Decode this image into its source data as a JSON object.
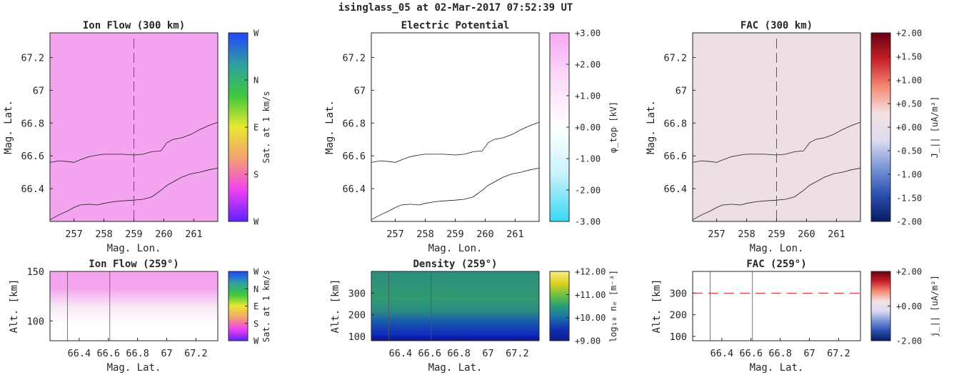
{
  "suptitle": "isinglass_05 at 02-Mar-2017 07:52:39 UT",
  "colors": {
    "ion_flow_fill": "#f5a5f0",
    "fac_fill": "#ede0e4",
    "cut_line": "#e02020",
    "contour": "#1a1a1a"
  },
  "chart_data": [
    {
      "id": "ion-flow-300",
      "type": "heatmap",
      "title": "Ion Flow (300 km)",
      "xlabel": "Mag. Lon.",
      "ylabel": "Mag. Lat.",
      "xlim": [
        256.2,
        261.8
      ],
      "ylim": [
        66.2,
        67.35
      ],
      "xticks": [
        "257",
        "258",
        "259",
        "260",
        "261"
      ],
      "yticks": [
        "66.4",
        "66.6",
        "66.8",
        "67",
        "67.2"
      ],
      "cut_lon": 259,
      "colorbar": {
        "label": "Sat. at 1 km/s",
        "ticks": [
          "W",
          "N",
          "E",
          "S",
          "W"
        ],
        "colors": [
          "#2244ff",
          "#2fa0a0",
          "#3dc83d",
          "#e8e830",
          "#f5a070",
          "#f040f0",
          "#6020ff"
        ]
      }
    },
    {
      "id": "electric-potential",
      "type": "heatmap",
      "title": "Electric Potential",
      "xlabel": "Mag. Lon.",
      "ylabel": "Mag. Lat.",
      "xlim": [
        256.2,
        261.8
      ],
      "ylim": [
        66.2,
        67.35
      ],
      "xticks": [
        "257",
        "258",
        "259",
        "260",
        "261"
      ],
      "yticks": [
        "66.4",
        "66.6",
        "66.8",
        "67",
        "67.2"
      ],
      "colorbar": {
        "label": "φ_top [kV]",
        "ticks": [
          "+3.00",
          "+2.00",
          "+1.00",
          "+0.00",
          "-1.00",
          "-2.00",
          "-3.00"
        ],
        "colors": [
          "#f8a8f4",
          "#fcdcfa",
          "#ffffff",
          "#c8f2fc",
          "#38d8f4"
        ]
      }
    },
    {
      "id": "fac-300",
      "type": "heatmap",
      "title": "FAC (300 km)",
      "xlabel": "Mag. Lon.",
      "ylabel": "Mag. Lat.",
      "xlim": [
        256.2,
        261.8
      ],
      "ylim": [
        66.2,
        67.35
      ],
      "xticks": [
        "257",
        "258",
        "259",
        "260",
        "261"
      ],
      "yticks": [
        "66.4",
        "66.6",
        "66.8",
        "67",
        "67.2"
      ],
      "cut_lon": 259,
      "colorbar": {
        "label": "J_|| [uA/m²]",
        "ticks": [
          "+2.00",
          "+1.50",
          "+1.00",
          "+0.50",
          "+0.00",
          "-0.50",
          "-1.00",
          "-1.50",
          "-2.00"
        ],
        "colors": [
          "#6a0010",
          "#c8202a",
          "#f48a72",
          "#f4e2e4",
          "#dcdcf0",
          "#7a96d6",
          "#2a50b0",
          "#0a1a60"
        ]
      }
    },
    {
      "id": "ion-flow-259",
      "type": "heatmap",
      "title": "Ion Flow (259°)",
      "xlabel": "Mag. Lat.",
      "ylabel": "Alt. [km]",
      "xlim": [
        66.2,
        67.35
      ],
      "ylim": [
        80,
        150
      ],
      "xticks": [
        "66.4",
        "66.6",
        "66.8",
        "67",
        "67.2"
      ],
      "yticks": [
        "100",
        "150"
      ],
      "colorbar": {
        "label": "Sat. at 1 km/s",
        "ticks": [
          "W",
          "N",
          "E",
          "S",
          "W"
        ],
        "colors": [
          "#2244ff",
          "#2fa0a0",
          "#3dc83d",
          "#e8e830",
          "#f5a070",
          "#f040f0",
          "#6020ff"
        ]
      }
    },
    {
      "id": "density-259",
      "type": "heatmap",
      "title": "Density (259°)",
      "xlabel": "Mag. Lat.",
      "ylabel": "Alt. [km]",
      "xlim": [
        66.2,
        67.35
      ],
      "ylim": [
        80,
        400
      ],
      "xticks": [
        "66.4",
        "66.6",
        "66.8",
        "67",
        "67.2"
      ],
      "yticks": [
        "100",
        "200",
        "300"
      ],
      "colorbar": {
        "label": "log₁₀ nₑ [m⁻³]",
        "ticks": [
          "+12.00",
          "+11.00",
          "+10.00",
          "+9.00"
        ],
        "colors": [
          "#f8f080",
          "#e0d020",
          "#70c040",
          "#2a9e78",
          "#1a70a8",
          "#1030b0",
          "#101a90"
        ]
      }
    },
    {
      "id": "fac-259",
      "type": "heatmap",
      "title": "FAC (259°)",
      "xlabel": "Mag. Lat.",
      "ylabel": "Alt. [km]",
      "xlim": [
        66.2,
        67.35
      ],
      "ylim": [
        80,
        400
      ],
      "xticks": [
        "66.4",
        "66.6",
        "66.8",
        "67",
        "67.2"
      ],
      "yticks": [
        "100",
        "200",
        "300"
      ],
      "cut_alt": 300,
      "colorbar": {
        "label": "j_|| [uA/m²]",
        "ticks": [
          "+2.00",
          "+0.00",
          "-2.00"
        ],
        "colors": [
          "#6a0010",
          "#c8202a",
          "#f48a72",
          "#f4e2e4",
          "#dcdcf0",
          "#7a96d6",
          "#2a50b0",
          "#0a1a60"
        ]
      }
    }
  ],
  "boundary_curves": {
    "upper": {
      "lon": [
        256.2,
        256.5,
        256.8,
        257.0,
        257.2,
        257.5,
        257.8,
        258.0,
        258.3,
        258.6,
        259.0,
        259.3,
        259.6,
        259.9,
        260.1,
        260.3,
        260.6,
        260.9,
        261.2,
        261.5,
        261.8
      ],
      "lat": [
        66.56,
        66.57,
        66.565,
        66.56,
        66.575,
        66.595,
        66.605,
        66.61,
        66.61,
        66.61,
        66.605,
        66.61,
        66.625,
        66.63,
        66.68,
        66.7,
        66.71,
        66.73,
        66.76,
        66.785,
        66.805
      ]
    },
    "lower": {
      "lon": [
        256.2,
        256.5,
        256.8,
        257.0,
        257.2,
        257.5,
        257.8,
        258.0,
        258.3,
        258.6,
        259.0,
        259.3,
        259.6,
        259.9,
        260.1,
        260.3,
        260.6,
        260.9,
        261.2,
        261.5,
        261.8
      ],
      "lat": [
        66.21,
        66.24,
        66.265,
        66.285,
        66.3,
        66.305,
        66.3,
        66.31,
        66.32,
        66.325,
        66.33,
        66.335,
        66.35,
        66.39,
        66.42,
        66.44,
        66.47,
        66.49,
        66.5,
        66.515,
        66.525
      ]
    },
    "alt_cut_lat": [
      66.32,
      66.61
    ]
  }
}
